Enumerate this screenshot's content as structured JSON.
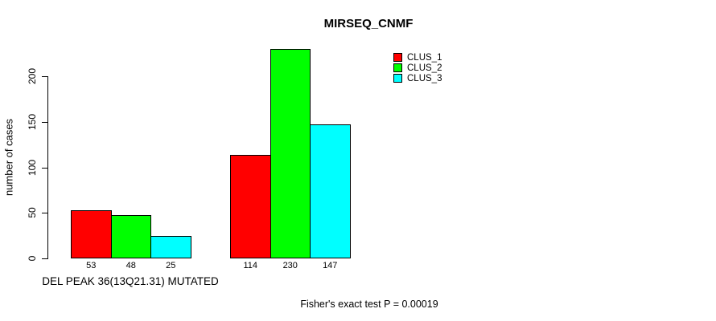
{
  "chart_data": {
    "type": "bar",
    "title": "MIRSEQ_CNMF",
    "ylabel": "number of cases",
    "annotation": "Fisher's exact test P = 0.00019",
    "y_ticks": [
      0,
      50,
      100,
      150,
      200
    ],
    "ylim": [
      0,
      230
    ],
    "grid": false,
    "legend_position": "top-right",
    "bar_value_labels_shown": true,
    "series": [
      {
        "name": "CLUS_1",
        "color": "#ff0000"
      },
      {
        "name": "CLUS_2",
        "color": "#00ff00"
      },
      {
        "name": "CLUS_3",
        "color": "#00ffff"
      }
    ],
    "groups": [
      {
        "label": "DEL PEAK 36(13Q21.31) MUTATED",
        "values": [
          53,
          48,
          25
        ]
      },
      {
        "label": "",
        "values": [
          114,
          230,
          147
        ]
      }
    ]
  }
}
